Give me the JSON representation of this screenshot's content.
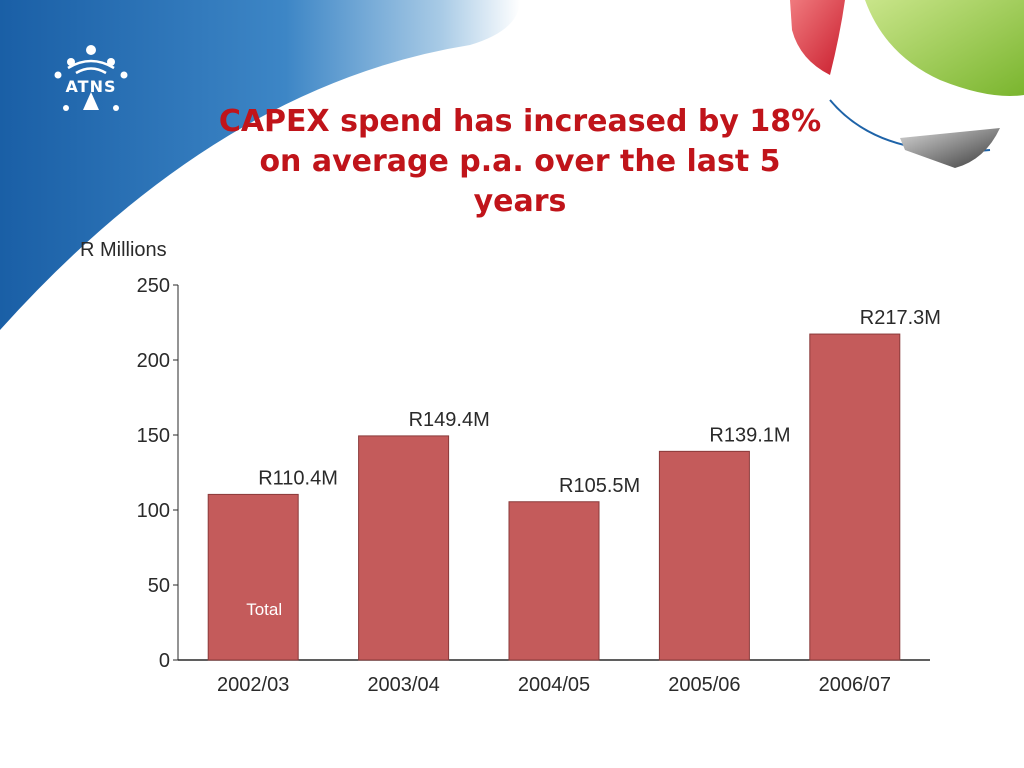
{
  "slide": {
    "title": "CAPEX spend has increased by 18% on average p.a. over the last 5 years",
    "logo_text": "ATNS"
  },
  "colors": {
    "title": "#c0141a",
    "bar_fill": "#c45b5b",
    "bar_stroke": "#8a3a3a",
    "header_blue": "#1e63a8",
    "accent_green": "#8cc63f",
    "accent_red": "#d9293a"
  },
  "chart_data": {
    "type": "bar",
    "ylabel": "R Millions",
    "ylim": [
      0,
      250
    ],
    "yticks": [
      "0",
      "50",
      "100",
      "150",
      "200",
      "250"
    ],
    "categories": [
      "2002/03",
      "2003/04",
      "2004/05",
      "2005/06",
      "2006/07"
    ],
    "values": [
      110.4,
      149.4,
      105.5,
      139.1,
      217.3
    ],
    "data_labels": [
      "R110.4M",
      "R149.4M",
      "R105.5M",
      "R139.1M",
      "R217.3M"
    ],
    "annotations": [
      {
        "category": "2002/03",
        "text": "Total"
      }
    ],
    "grid": false,
    "legend": "none"
  }
}
